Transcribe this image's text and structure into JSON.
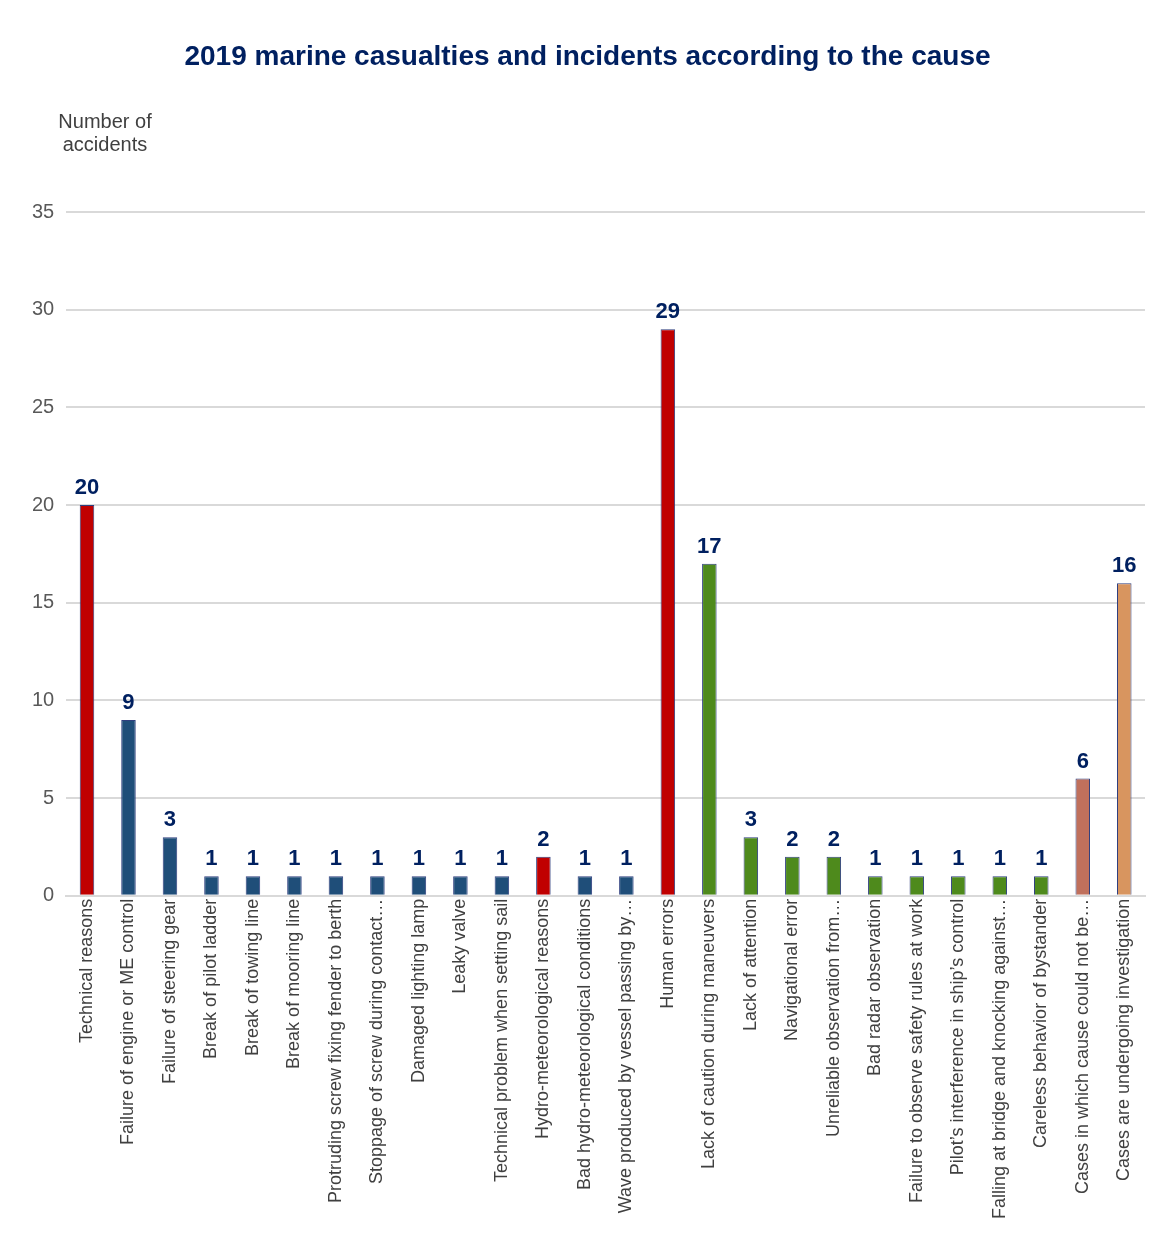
{
  "chart_data": {
    "type": "bar",
    "title": "2019 marine casualties and incidents according to the cause",
    "ylabel": "Number of accidents",
    "categories": [
      "Technical reasons",
      "Failure of engine or ME control",
      "Failure of steering gear",
      "Break of pilot ladder",
      "Break of towing line",
      "Break of mooring line",
      "Protruding screw fixing fender to berth",
      "Stoppage of screw during contact…",
      "Damaged lighting lamp",
      "Leaky valve",
      "Technical problem when setting sail",
      "Hydro-meteorological reasons",
      "Bad hydro-meteorological conditions",
      "Wave produced by vessel passing by…",
      "Human errors",
      "Lack of caution during maneuvers",
      "Lack of attention",
      "Navigational error",
      "Unreliable observation from…",
      "Bad radar observation",
      "Failure to observe safety rules at work",
      "Pilot’s interference in ship’s control",
      "Falling at bridge and knocking against…",
      "Careless behavior of bystander",
      "Cases in which cause could not be…",
      "Cases are undergoing investigation"
    ],
    "values": [
      20,
      9,
      3,
      1,
      1,
      1,
      1,
      1,
      1,
      1,
      1,
      2,
      1,
      1,
      29,
      17,
      3,
      2,
      2,
      1,
      1,
      1,
      1,
      1,
      6,
      16
    ],
    "colors": [
      "#c00000",
      "#1f4e79",
      "#1f4e79",
      "#1f4e79",
      "#1f4e79",
      "#1f4e79",
      "#1f4e79",
      "#1f4e79",
      "#1f4e79",
      "#1f4e79",
      "#1f4e79",
      "#c00000",
      "#1f4e79",
      "#1f4e79",
      "#c00000",
      "#4e8a1c",
      "#4e8a1c",
      "#4e8a1c",
      "#4e8a1c",
      "#4e8a1c",
      "#4e8a1c",
      "#4e8a1c",
      "#4e8a1c",
      "#4e8a1c",
      "#c0705c",
      "#d8955f"
    ],
    "ylim": [
      0,
      35
    ],
    "yticks": [
      0,
      5,
      10,
      15,
      20,
      25,
      30,
      35
    ],
    "grid": "y",
    "data_labels": true,
    "legend": false
  }
}
